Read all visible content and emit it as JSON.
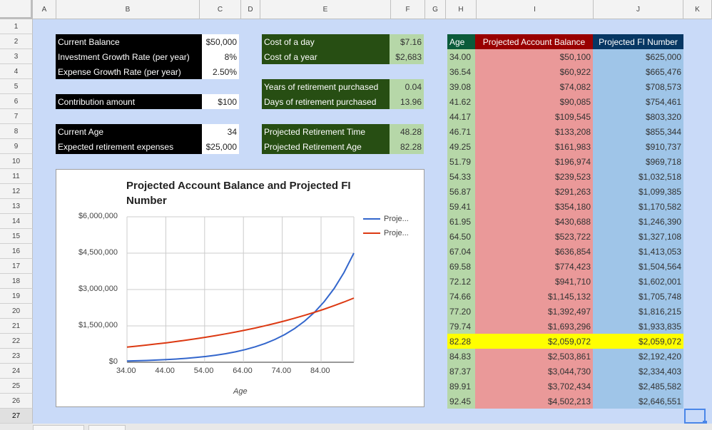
{
  "columns": [
    "A",
    "B",
    "C",
    "D",
    "E",
    "F",
    "G",
    "H",
    "I",
    "J",
    "K"
  ],
  "rows": [
    "1",
    "2",
    "3",
    "4",
    "5",
    "6",
    "7",
    "8",
    "9",
    "10",
    "11",
    "12",
    "13",
    "14",
    "15",
    "16",
    "17",
    "18",
    "19",
    "20",
    "21",
    "22",
    "23",
    "24",
    "25",
    "26",
    "27"
  ],
  "inputs": {
    "current_balance_label": "Current Balance",
    "current_balance_value": "$50,000",
    "growth_rate_label": "Investment Growth Rate (per year)",
    "growth_rate_value": "8%",
    "expense_growth_label": "Expense Growth Rate (per year)",
    "expense_growth_value": "2.50%",
    "contribution_label": "Contribution amount",
    "contribution_value": "$100",
    "current_age_label": "Current Age",
    "current_age_value": "34",
    "retirement_expenses_label": "Expected retirement expenses",
    "retirement_expenses_value": "$25,000"
  },
  "outputs": {
    "cost_day_label": "Cost of a day",
    "cost_day_value": "$7.16",
    "cost_year_label": "Cost of a year",
    "cost_year_value": "$2,683",
    "years_purchased_label": "Years of retirement purchased",
    "years_purchased_value": "0.04",
    "days_purchased_label": "Days of retirement purchased",
    "days_purchased_value": "13.96",
    "proj_time_label": "Projected Retirement Time",
    "proj_time_value": "48.28",
    "proj_age_label": "Projected Retirement Age",
    "proj_age_value": "82.28"
  },
  "table": {
    "headers": [
      "Age",
      "Projected Account Balance",
      "Projected FI Number"
    ],
    "highlight_index": 20,
    "rows": [
      [
        "34.00",
        "$50,100",
        "$625,000"
      ],
      [
        "36.54",
        "$60,922",
        "$665,476"
      ],
      [
        "39.08",
        "$74,082",
        "$708,573"
      ],
      [
        "41.62",
        "$90,085",
        "$754,461"
      ],
      [
        "44.17",
        "$109,545",
        "$803,320"
      ],
      [
        "46.71",
        "$133,208",
        "$855,344"
      ],
      [
        "49.25",
        "$161,983",
        "$910,737"
      ],
      [
        "51.79",
        "$196,974",
        "$969,718"
      ],
      [
        "54.33",
        "$239,523",
        "$1,032,518"
      ],
      [
        "56.87",
        "$291,263",
        "$1,099,385"
      ],
      [
        "59.41",
        "$354,180",
        "$1,170,582"
      ],
      [
        "61.95",
        "$430,688",
        "$1,246,390"
      ],
      [
        "64.50",
        "$523,722",
        "$1,327,108"
      ],
      [
        "67.04",
        "$636,854",
        "$1,413,053"
      ],
      [
        "69.58",
        "$774,423",
        "$1,504,564"
      ],
      [
        "72.12",
        "$941,710",
        "$1,602,001"
      ],
      [
        "74.66",
        "$1,145,132",
        "$1,705,748"
      ],
      [
        "77.20",
        "$1,392,497",
        "$1,816,215"
      ],
      [
        "79.74",
        "$1,693,296",
        "$1,933,835"
      ],
      [
        "82.28",
        "$2,059,072",
        "$2,059,072"
      ],
      [
        "84.83",
        "$2,503,861",
        "$2,192,420"
      ],
      [
        "87.37",
        "$3,044,730",
        "$2,334,403"
      ],
      [
        "89.91",
        "$3,702,434",
        "$2,485,582"
      ],
      [
        "92.45",
        "$4,502,213",
        "$2,646,551"
      ]
    ]
  },
  "chart_data": {
    "type": "line",
    "title": "Projected Account Balance and Projected FI Number",
    "xlabel": "Age",
    "ylabel": "",
    "xlim": [
      34,
      92.45
    ],
    "ylim": [
      0,
      6000000
    ],
    "x_ticks": [
      "34.00",
      "44.00",
      "54.00",
      "64.00",
      "74.00",
      "84.00"
    ],
    "x_tick_values": [
      34,
      44,
      54,
      64,
      74,
      84
    ],
    "y_ticks": [
      "$0",
      "$1,500,000",
      "$3,000,000",
      "$4,500,000",
      "$6,000,000"
    ],
    "y_tick_values": [
      0,
      1500000,
      3000000,
      4500000,
      6000000
    ],
    "legend_position": "right",
    "x": [
      34.0,
      36.54,
      39.08,
      41.62,
      44.17,
      46.71,
      49.25,
      51.79,
      54.33,
      56.87,
      59.41,
      61.95,
      64.5,
      67.04,
      69.58,
      72.12,
      74.66,
      77.2,
      79.74,
      82.28,
      84.83,
      87.37,
      89.91,
      92.45
    ],
    "series": [
      {
        "name": "Proje...",
        "color": "#3366cc",
        "values": [
          50100,
          60922,
          74082,
          90085,
          109545,
          133208,
          161983,
          196974,
          239523,
          291263,
          354180,
          430688,
          523722,
          636854,
          774423,
          941710,
          1145132,
          1392497,
          1693296,
          2059072,
          2503861,
          3044730,
          3702434,
          4502213
        ]
      },
      {
        "name": "Proje...",
        "color": "#dc3912",
        "values": [
          625000,
          665476,
          708573,
          754461,
          803320,
          855344,
          910737,
          969718,
          1032518,
          1099385,
          1170582,
          1246390,
          1327108,
          1413053,
          1504564,
          1602001,
          1705748,
          1816215,
          1933835,
          2059072,
          2192420,
          2334403,
          2485582,
          2646551
        ]
      }
    ]
  }
}
